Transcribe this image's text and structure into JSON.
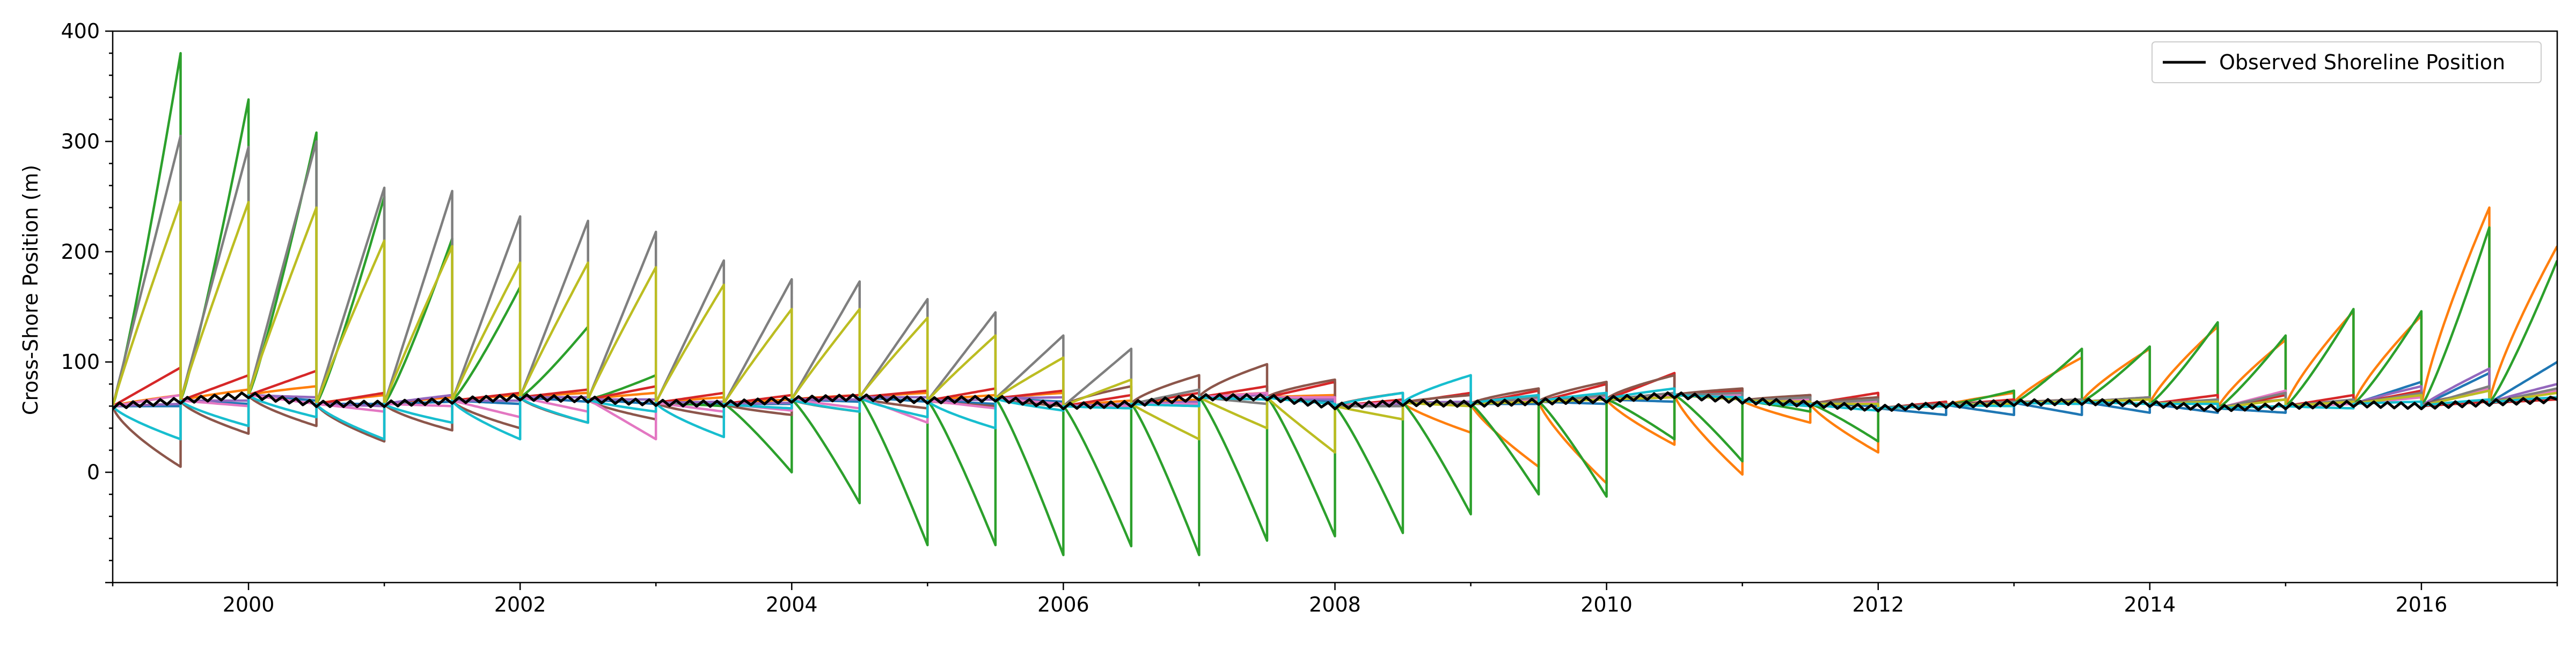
{
  "chart_data": {
    "type": "line",
    "title": "",
    "xlabel": "",
    "ylabel": "Cross-Shore Position (m)",
    "xlim": [
      1999.0,
      2017.0
    ],
    "ylim": [
      -100,
      400
    ],
    "x_ticks": [
      {
        "value": 2000,
        "label": "2000"
      },
      {
        "value": 2002,
        "label": "2002"
      },
      {
        "value": 2004,
        "label": "2004"
      },
      {
        "value": 2006,
        "label": "2006"
      },
      {
        "value": 2008,
        "label": "2008"
      },
      {
        "value": 2010,
        "label": "2010"
      },
      {
        "value": 2012,
        "label": "2012"
      },
      {
        "value": 2014,
        "label": "2014"
      },
      {
        "value": 2016,
        "label": "2016"
      }
    ],
    "y_ticks": [
      {
        "value": 0,
        "label": "0"
      },
      {
        "value": 100,
        "label": "100"
      },
      {
        "value": 200,
        "label": "200"
      },
      {
        "value": 300,
        "label": "300"
      },
      {
        "value": 400,
        "label": "400"
      }
    ],
    "grid": false,
    "legend": {
      "position": "top-right",
      "entries": [
        {
          "label": "Observed Shoreline Position",
          "color": "#000000"
        }
      ]
    },
    "observed": {
      "name": "Observed Shoreline Position",
      "color": "#000000",
      "x": [
        1999.0,
        1999.5,
        2000.0,
        2000.5,
        2001.0,
        2001.5,
        2002.0,
        2002.5,
        2003.0,
        2003.5,
        2004.0,
        2004.5,
        2005.0,
        2005.5,
        2006.0,
        2006.5,
        2007.0,
        2007.5,
        2008.0,
        2008.5,
        2009.0,
        2009.5,
        2010.0,
        2010.5,
        2011.0,
        2011.5,
        2012.0,
        2012.5,
        2013.0,
        2013.5,
        2014.0,
        2014.5,
        2015.0,
        2015.5,
        2016.0,
        2016.5,
        2017.0
      ],
      "y": [
        60,
        65,
        70,
        62,
        62,
        65,
        68,
        66,
        63,
        62,
        66,
        68,
        65,
        67,
        60,
        62,
        68,
        68,
        60,
        63,
        62,
        64,
        66,
        70,
        65,
        62,
        58,
        61,
        63,
        64,
        62,
        58,
        60,
        62,
        60,
        63,
        66
      ]
    },
    "model_colors": [
      "#1f77b4",
      "#ff7f0e",
      "#2ca02c",
      "#d62728",
      "#9467bd",
      "#8c564b",
      "#e377c2",
      "#7f7f7f",
      "#bcbd22",
      "#17becf"
    ],
    "forecast_segments": [
      {
        "start": 1999.0,
        "end": 1999.5,
        "start_y": 60,
        "ends": [
          60,
          70,
          380,
          95,
          62,
          5,
          70,
          305,
          245,
          30
        ]
      },
      {
        "start": 1999.5,
        "end": 2000.0,
        "start_y": 65,
        "ends": [
          62,
          75,
          338,
          88,
          65,
          35,
          60,
          295,
          245,
          42
        ]
      },
      {
        "start": 2000.0,
        "end": 2000.5,
        "start_y": 70,
        "ends": [
          65,
          78,
          308,
          92,
          68,
          42,
          62,
          300,
          240,
          50
        ]
      },
      {
        "start": 2000.5,
        "end": 2001.0,
        "start_y": 62,
        "ends": [
          62,
          70,
          250,
          72,
          60,
          28,
          55,
          258,
          210,
          30
        ]
      },
      {
        "start": 2001.0,
        "end": 2001.5,
        "start_y": 62,
        "ends": [
          64,
          68,
          212,
          70,
          70,
          38,
          60,
          255,
          205,
          45
        ]
      },
      {
        "start": 2001.5,
        "end": 2002.0,
        "start_y": 65,
        "ends": [
          62,
          70,
          168,
          72,
          65,
          40,
          50,
          232,
          190,
          30
        ]
      },
      {
        "start": 2002.0,
        "end": 2002.5,
        "start_y": 68,
        "ends": [
          64,
          72,
          132,
          75,
          68,
          45,
          55,
          228,
          190,
          45
        ]
      },
      {
        "start": 2002.5,
        "end": 2003.0,
        "start_y": 66,
        "ends": [
          62,
          72,
          88,
          78,
          66,
          48,
          30,
          218,
          186,
          55
        ]
      },
      {
        "start": 2003.0,
        "end": 2003.5,
        "start_y": 63,
        "ends": [
          62,
          68,
          60,
          72,
          64,
          50,
          55,
          192,
          170,
          32
        ]
      },
      {
        "start": 2003.5,
        "end": 2004.0,
        "start_y": 62,
        "ends": [
          62,
          66,
          0,
          70,
          63,
          52,
          56,
          175,
          148,
          58
        ]
      },
      {
        "start": 2004.0,
        "end": 2004.5,
        "start_y": 66,
        "ends": [
          64,
          70,
          -28,
          70,
          66,
          55,
          58,
          173,
          148,
          55
        ]
      },
      {
        "start": 2004.5,
        "end": 2005.0,
        "start_y": 68,
        "ends": [
          64,
          72,
          -66,
          74,
          68,
          58,
          45,
          157,
          140,
          50
        ]
      },
      {
        "start": 2005.0,
        "end": 2005.5,
        "start_y": 65,
        "ends": [
          62,
          70,
          -66,
          76,
          66,
          60,
          58,
          145,
          124,
          40
        ]
      },
      {
        "start": 2005.5,
        "end": 2006.0,
        "start_y": 67,
        "ends": [
          64,
          72,
          -75,
          74,
          68,
          60,
          62,
          124,
          104,
          56
        ]
      },
      {
        "start": 2006.0,
        "end": 2006.5,
        "start_y": 60,
        "ends": [
          60,
          65,
          -67,
          70,
          62,
          78,
          60,
          112,
          84,
          58
        ]
      },
      {
        "start": 2006.5,
        "end": 2007.0,
        "start_y": 62,
        "ends": [
          62,
          66,
          -75,
          72,
          64,
          88,
          62,
          75,
          30,
          60
        ]
      },
      {
        "start": 2007.0,
        "end": 2007.5,
        "start_y": 68,
        "ends": [
          66,
          72,
          -62,
          78,
          70,
          98,
          72,
          62,
          40,
          66
        ]
      },
      {
        "start": 2007.5,
        "end": 2008.0,
        "start_y": 68,
        "ends": [
          64,
          70,
          -58,
          82,
          66,
          84,
          68,
          62,
          18,
          62
        ]
      },
      {
        "start": 2008.0,
        "end": 2008.5,
        "start_y": 60,
        "ends": [
          60,
          62,
          -55,
          66,
          62,
          72,
          64,
          60,
          48,
          72
        ]
      },
      {
        "start": 2008.5,
        "end": 2009.0,
        "start_y": 63,
        "ends": [
          62,
          36,
          -38,
          72,
          64,
          70,
          62,
          62,
          60,
          88
        ]
      },
      {
        "start": 2009.0,
        "end": 2009.5,
        "start_y": 62,
        "ends": [
          62,
          5,
          -20,
          74,
          64,
          76,
          66,
          68,
          64,
          70
        ]
      },
      {
        "start": 2009.5,
        "end": 2010.0,
        "start_y": 64,
        "ends": [
          62,
          -10,
          -22,
          80,
          66,
          82,
          68,
          70,
          66,
          72
        ]
      },
      {
        "start": 2010.0,
        "end": 2010.5,
        "start_y": 66,
        "ends": [
          64,
          25,
          30,
          90,
          68,
          88,
          70,
          72,
          68,
          76
        ]
      },
      {
        "start": 2010.5,
        "end": 2011.0,
        "start_y": 70,
        "ends": [
          66,
          -2,
          10,
          74,
          70,
          76,
          70,
          72,
          66,
          68
        ]
      },
      {
        "start": 2011.0,
        "end": 2011.5,
        "start_y": 65,
        "ends": [
          62,
          45,
          55,
          70,
          66,
          70,
          66,
          68,
          64,
          60
        ]
      },
      {
        "start": 2011.5,
        "end": 2012.0,
        "start_y": 62,
        "ends": [
          60,
          18,
          28,
          72,
          64,
          68,
          64,
          66,
          62,
          56
        ]
      },
      {
        "start": 2012.0,
        "end": 2012.5,
        "start_y": 58,
        "ends": [
          52,
          62,
          64,
          64,
          60,
          62,
          60,
          62,
          60,
          60
        ]
      },
      {
        "start": 2012.5,
        "end": 2013.0,
        "start_y": 61,
        "ends": [
          52,
          72,
          74,
          66,
          62,
          64,
          62,
          64,
          62,
          60
        ]
      },
      {
        "start": 2013.0,
        "end": 2013.5,
        "start_y": 63,
        "ends": [
          52,
          104,
          112,
          66,
          64,
          66,
          64,
          66,
          64,
          62
        ]
      },
      {
        "start": 2013.5,
        "end": 2014.0,
        "start_y": 64,
        "ends": [
          54,
          112,
          114,
          68,
          66,
          66,
          66,
          68,
          66,
          62
        ]
      },
      {
        "start": 2014.0,
        "end": 2014.5,
        "start_y": 62,
        "ends": [
          54,
          132,
          136,
          70,
          64,
          64,
          64,
          66,
          64,
          62
        ]
      },
      {
        "start": 2014.5,
        "end": 2015.0,
        "start_y": 58,
        "ends": [
          54,
          120,
          124,
          70,
          66,
          66,
          74,
          72,
          66,
          60
        ]
      },
      {
        "start": 2015.0,
        "end": 2015.5,
        "start_y": 60,
        "ends": [
          62,
          146,
          148,
          70,
          64,
          64,
          62,
          66,
          64,
          58
        ]
      },
      {
        "start": 2015.5,
        "end": 2016.0,
        "start_y": 62,
        "ends": [
          82,
          142,
          146,
          74,
          78,
          70,
          68,
          72,
          70,
          64
        ]
      },
      {
        "start": 2016.0,
        "end": 2016.5,
        "start_y": 60,
        "ends": [
          90,
          240,
          222,
          64,
          94,
          74,
          76,
          78,
          74,
          66
        ]
      },
      {
        "start": 2016.5,
        "end": 2017.0,
        "start_y": 63,
        "ends": [
          100,
          205,
          192,
          66,
          80,
          72,
          74,
          76,
          72,
          68
        ]
      }
    ]
  }
}
